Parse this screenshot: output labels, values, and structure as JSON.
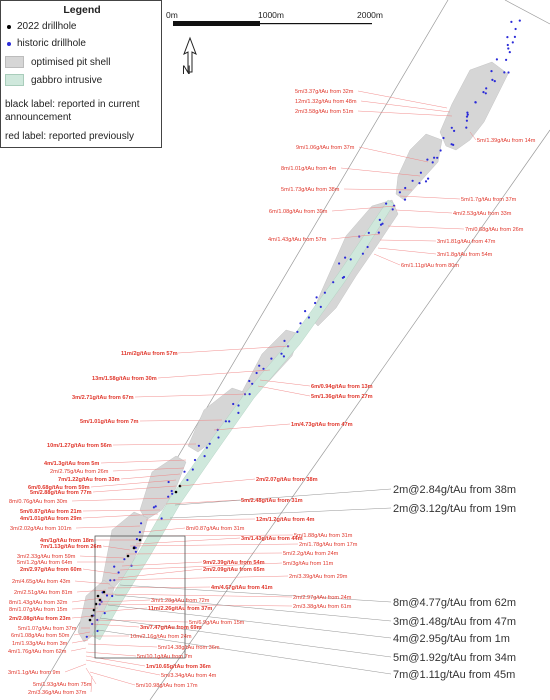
{
  "legend": {
    "title": "Legend",
    "items": [
      {
        "label": "2022 drillhole",
        "symbol": "black-dot",
        "color": "#000000"
      },
      {
        "label": "historic drillhole",
        "symbol": "blue-dot",
        "color": "#2b2bd8"
      },
      {
        "label": "optimised pit shell",
        "symbol": "grey-fill",
        "color": "#d6d6d6"
      },
      {
        "label": "gabbro intrusive",
        "symbol": "green-fill",
        "color": "#cfe8dc"
      }
    ],
    "notes": [
      {
        "line1": "black label:  reported in current",
        "line2": "announcement"
      },
      {
        "line1": "red label:  reported previously",
        "line2": ""
      }
    ]
  },
  "scale_bar": {
    "ticks": [
      "0m",
      "1000m",
      "2000m"
    ]
  },
  "north_arrow": {
    "letter": "N"
  },
  "colors": {
    "red_label": "#e0362b",
    "black_label": "#333333",
    "pit_shell": "#d6d6d6",
    "gabbro": "#cfe8dc",
    "historic_hole": "#2b2bd8"
  },
  "red_labels": [
    {
      "text": "5m/3.37g/tAu from 32m",
      "bold": false
    },
    {
      "text": "12m/1.32g/tAu from 48m",
      "bold": false
    },
    {
      "text": "2m/3.58g/tAu from 51m",
      "bold": false
    },
    {
      "text": "5m/1.39g/tAu from 14m",
      "bold": false
    },
    {
      "text": "9m/1.06g/tAu from 37m",
      "bold": false
    },
    {
      "text": "8m/1.01g/tAu from 4m",
      "bold": false
    },
    {
      "text": "5m/1.73g/tAu from 38m",
      "bold": false
    },
    {
      "text": "5m/1.7g/tAu from 37m",
      "bold": false
    },
    {
      "text": "6m/1.08g/tAu from 39m",
      "bold": false
    },
    {
      "text": "4m/2.53g/tAu from 33m",
      "bold": false
    },
    {
      "text": "7m/0.68g/tAu from 26m",
      "bold": false
    },
    {
      "text": "4m/1.43g/tAu from 57m",
      "bold": false
    },
    {
      "text": "3m/1.81g/tAu from 47m",
      "bold": false
    },
    {
      "text": "3m/1.8g/tAu from 54m",
      "bold": false
    },
    {
      "text": "6m/1.11g/tAu from 80m",
      "bold": false
    },
    {
      "text": "11m/2g/tAu from 57m",
      "bold": true
    },
    {
      "text": "13m/1.58g/tAu from 30m",
      "bold": true
    },
    {
      "text": "6m/0.94g/tAu from 13m",
      "bold": true
    },
    {
      "text": "5m/1.36g/tAu from 27m",
      "bold": true
    },
    {
      "text": "3m/2.71g/tAu from 67m",
      "bold": true
    },
    {
      "text": "5m/1.01g/tAu from 7m",
      "bold": true
    },
    {
      "text": "1m/4.73g/tAu from 47m",
      "bold": true
    },
    {
      "text": "10m/1.27g/tAu from 56m",
      "bold": true
    },
    {
      "text": "4m/1.3g/tAu from 5m",
      "bold": true
    },
    {
      "text": "2m/2.75g/tAu from 26m",
      "bold": false
    },
    {
      "text": "7m/1.22g/tAu from 33m",
      "bold": true
    },
    {
      "text": "6m/0.68g/tAu from 59m",
      "bold": true
    },
    {
      "text": "5m/2.88g/tAu from 77m",
      "bold": true
    },
    {
      "text": "2m/2.07g/tAu from 38m",
      "bold": true
    },
    {
      "text": "8m/0.76g/tAu from 30m",
      "bold": false
    },
    {
      "text": "5m/2.48g/tAu from 31m",
      "bold": true
    },
    {
      "text": "5m/0.87g/tAu from 21m",
      "bold": true
    },
    {
      "text": "4m/1.01g/tAu from 29m",
      "bold": true
    },
    {
      "text": "12m/1.2g/tAu from 4m",
      "bold": true
    },
    {
      "text": "3m/2.02g/tAu from 101m",
      "bold": false
    },
    {
      "text": "8m/0.87g/tAu from 31m",
      "bold": false
    },
    {
      "text": "5m/1.88g/tAu from 31m",
      "bold": false
    },
    {
      "text": "4m/1g/tAu from 18m",
      "bold": true
    },
    {
      "text": "3m/1.43g/tAu from 44m",
      "bold": true
    },
    {
      "text": "2m/1.78g/tAu from 17m",
      "bold": false
    },
    {
      "text": "7m/1.13g/tAu from 26m",
      "bold": true
    },
    {
      "text": "5m/2.2g/tAu from 24m",
      "bold": false
    },
    {
      "text": "3m/2.33g/tAu from 59m",
      "bold": false
    },
    {
      "text": "5m/1.2g/tAu from 64m",
      "bold": false
    },
    {
      "text": "9m/2.39g/tAu from 54m",
      "bold": true
    },
    {
      "text": "5m/3g/tAu from 11m",
      "bold": false
    },
    {
      "text": "2m/2.97g/tAu from 60m",
      "bold": true
    },
    {
      "text": "2m/2.09g/tAu from 65m",
      "bold": true
    },
    {
      "text": "2m/3.39g/tAu from 29m",
      "bold": false
    },
    {
      "text": "2m/4.65g/tAu from 43m",
      "bold": false
    },
    {
      "text": "4m/4.67g/tAu from 41m",
      "bold": true
    },
    {
      "text": "2m/2.51g/tAu from 81m",
      "bold": false
    },
    {
      "text": "2m/2.97g/tAu from 24m",
      "bold": false
    },
    {
      "text": "8m/1.43g/tAu from 32m",
      "bold": false
    },
    {
      "text": "3m/1.28g/tAu from 72m",
      "bold": false
    },
    {
      "text": "2m/3.38g/tAu from 61m",
      "bold": false
    },
    {
      "text": "8m/1.07g/tAu from 15m",
      "bold": false
    },
    {
      "text": "11m/2.26g/tAu from 37m",
      "bold": true
    },
    {
      "text": "2m/2.08g/tAu from 23m",
      "bold": true
    },
    {
      "text": "5m/6.9g/tAu from 15m",
      "bold": false
    },
    {
      "text": "3m/7.47g/tAu from 69m",
      "bold": true
    },
    {
      "text": "5m/1.07g/tAu from 37m",
      "bold": false
    },
    {
      "text": "6m/1.08g/tAu from 50m",
      "bold": false
    },
    {
      "text": "10m/2.16g/tAu from 24m",
      "bold": false
    },
    {
      "text": "1m/1.93g/tAu from 3m",
      "bold": false
    },
    {
      "text": "5m/14.38g/tAu from 36m",
      "bold": false
    },
    {
      "text": "4m/1.76g/tAu from 62m",
      "bold": false
    },
    {
      "text": "5m/10.1g/tAu from 7m",
      "bold": false
    },
    {
      "text": "1m/10.65g/tAu from 36m",
      "bold": true
    },
    {
      "text": "5m/3.34g/tAu from 4m",
      "bold": false
    },
    {
      "text": "3m/1.1g/tAu from 9m",
      "bold": false
    },
    {
      "text": "5m/1.93g/tAu from 75m",
      "bold": false
    },
    {
      "text": "5m/10.98g/tAu from 17m",
      "bold": false
    },
    {
      "text": "2m/3.36g/tAu from 37m",
      "bold": false
    }
  ],
  "black_labels": [
    "2m@2.84g/tAu from 38m",
    "2m@3.12g/tAu from 19m",
    "8m@4.77g/tAu from 62m",
    "3m@1.48g/tAu from 47m",
    "4m@2.95g/tAu from 1m",
    "5m@1.92g/tAu from 34m",
    "7m@1.11g/tAu from 45m"
  ]
}
